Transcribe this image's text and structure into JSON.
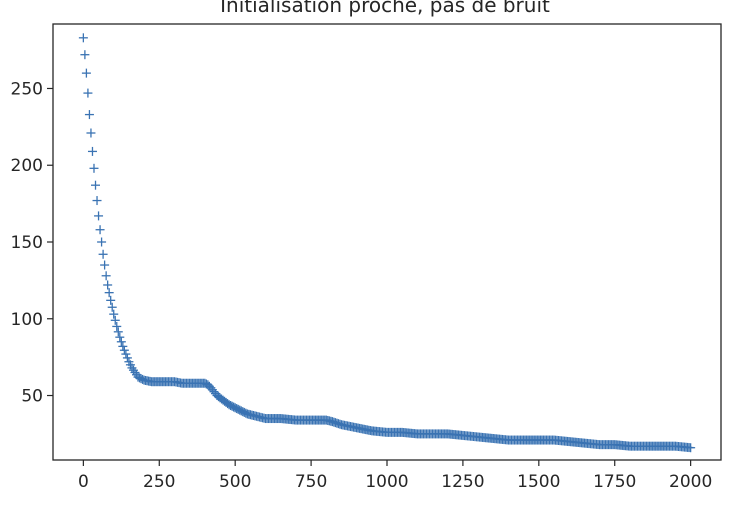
{
  "chart_data": {
    "type": "scatter",
    "title": "Initialisation proche, pas de bruit",
    "xlabel": "",
    "ylabel": "",
    "xlim": [
      -100,
      2100
    ],
    "ylim": [
      8,
      292
    ],
    "grid": false,
    "marker": "plus",
    "color": "#3a73b3",
    "x_ticks": [
      0,
      250,
      500,
      750,
      1000,
      1250,
      1500,
      1750,
      2000
    ],
    "x_tick_labels": [
      "0",
      "250",
      "500",
      "750",
      "1000",
      "1250",
      "1500",
      "1750",
      "2000"
    ],
    "y_ticks": [
      50,
      100,
      150,
      200,
      250
    ],
    "y_tick_labels": [
      "50",
      "100",
      "150",
      "200",
      "250"
    ],
    "series": [
      {
        "name": "",
        "points": [
          [
            0,
            283
          ],
          [
            5,
            272
          ],
          [
            10,
            260
          ],
          [
            15,
            247
          ],
          [
            20,
            233
          ],
          [
            25,
            221
          ],
          [
            30,
            209
          ],
          [
            35,
            198
          ],
          [
            40,
            187
          ],
          [
            45,
            177
          ],
          [
            50,
            167
          ],
          [
            55,
            158
          ],
          [
            60,
            150
          ],
          [
            65,
            142
          ],
          [
            70,
            135
          ],
          [
            75,
            128
          ],
          [
            80,
            122
          ],
          [
            90,
            112
          ],
          [
            100,
            103
          ],
          [
            110,
            95
          ],
          [
            120,
            88
          ],
          [
            130,
            82
          ],
          [
            140,
            77
          ],
          [
            150,
            72
          ],
          [
            160,
            68
          ],
          [
            170,
            65
          ],
          [
            180,
            62
          ],
          [
            190,
            61
          ],
          [
            200,
            60
          ],
          [
            225,
            59
          ],
          [
            250,
            59
          ],
          [
            275,
            59
          ],
          [
            300,
            59
          ],
          [
            325,
            58
          ],
          [
            350,
            58
          ],
          [
            375,
            58
          ],
          [
            400,
            58
          ],
          [
            410,
            57
          ],
          [
            420,
            55
          ],
          [
            440,
            50
          ],
          [
            460,
            47
          ],
          [
            480,
            44
          ],
          [
            500,
            42
          ],
          [
            520,
            40
          ],
          [
            540,
            38
          ],
          [
            560,
            37
          ],
          [
            580,
            36
          ],
          [
            600,
            35
          ],
          [
            650,
            35
          ],
          [
            700,
            34
          ],
          [
            750,
            34
          ],
          [
            800,
            34
          ],
          [
            820,
            33
          ],
          [
            850,
            31
          ],
          [
            900,
            29
          ],
          [
            950,
            27
          ],
          [
            1000,
            26
          ],
          [
            1050,
            26
          ],
          [
            1100,
            25
          ],
          [
            1150,
            25
          ],
          [
            1200,
            25
          ],
          [
            1250,
            24
          ],
          [
            1300,
            23
          ],
          [
            1350,
            22
          ],
          [
            1400,
            21
          ],
          [
            1450,
            21
          ],
          [
            1500,
            21
          ],
          [
            1550,
            21
          ],
          [
            1600,
            20
          ],
          [
            1650,
            19
          ],
          [
            1700,
            18
          ],
          [
            1750,
            18
          ],
          [
            1800,
            17
          ],
          [
            1850,
            17
          ],
          [
            1900,
            17
          ],
          [
            1950,
            17
          ],
          [
            2000,
            16
          ]
        ]
      }
    ]
  }
}
